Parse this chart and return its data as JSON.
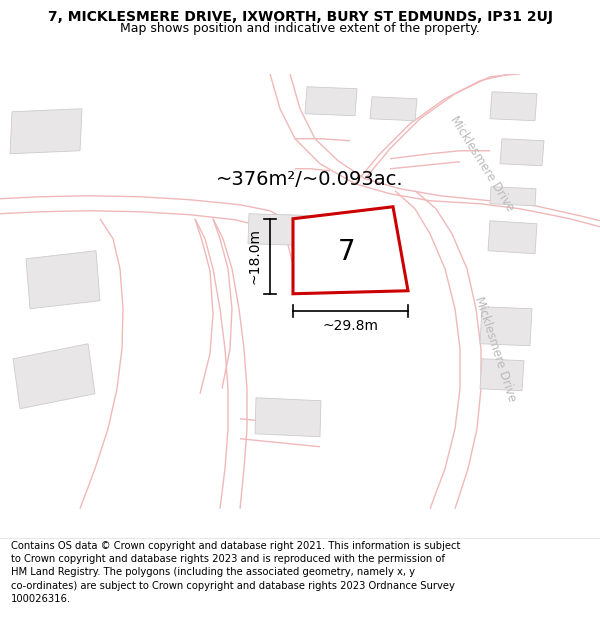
{
  "title_line1": "7, MICKLESMERE DRIVE, IXWORTH, BURY ST EDMUNDS, IP31 2UJ",
  "title_line2": "Map shows position and indicative extent of the property.",
  "footer_text": "Contains OS data © Crown copyright and database right 2021. This information is subject\nto Crown copyright and database rights 2023 and is reproduced with the permission of\nHM Land Registry. The polygons (including the associated geometry, namely x, y\nco-ordinates) are subject to Crown copyright and database rights 2023 Ordnance Survey\n100026316.",
  "map_bg": "#f7f6f6",
  "road_color": "#f0b8b8",
  "road_lw": 1.0,
  "building_color": "#e8e6e6",
  "building_edge": "#cccccc",
  "building_lw": 0.6,
  "plot_fill": "#ffffff",
  "plot_edge": "#cc0000",
  "plot_lw": 2.2,
  "area_label": "~376m²/~0.093ac.",
  "plot_number": "7",
  "dim_width_label": "~29.8m",
  "dim_height_label": "~18.0m",
  "road_label": "Micklesmere Drive",
  "road_label_color": "#bbbbbb",
  "title_fontsize": 10,
  "subtitle_fontsize": 9,
  "footer_fontsize": 7.2,
  "area_fontsize": 14,
  "number_fontsize": 20,
  "dim_fontsize": 10
}
